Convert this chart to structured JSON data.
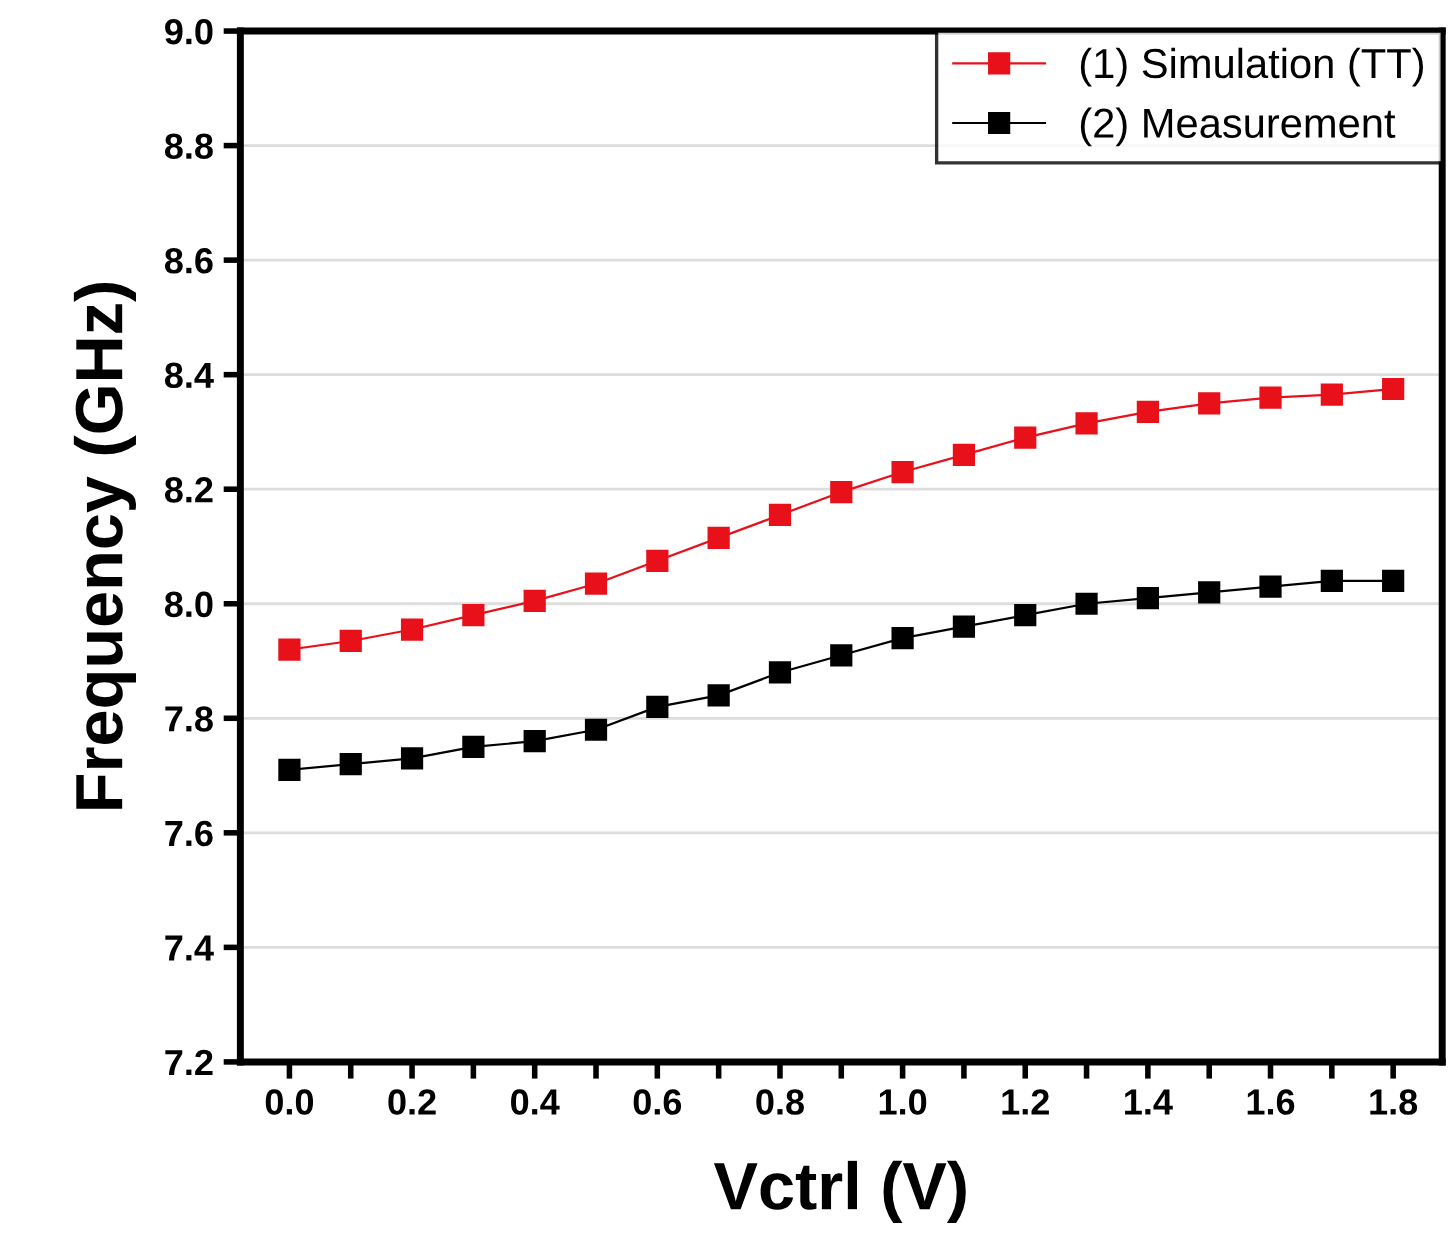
{
  "chart_data": {
    "type": "line",
    "xlabel": "Vctrl (V)",
    "ylabel": "Frequency (GHz)",
    "x": [
      0.0,
      0.1,
      0.2,
      0.3,
      0.4,
      0.5,
      0.6,
      0.7,
      0.8,
      0.9,
      1.0,
      1.1,
      1.2,
      1.3,
      1.4,
      1.5,
      1.6,
      1.7,
      1.8
    ],
    "series": [
      {
        "name": "(1) Simulation (TT)",
        "color": "#e8111a",
        "values": [
          7.92,
          7.935,
          7.955,
          7.98,
          8.005,
          8.035,
          8.075,
          8.115,
          8.155,
          8.195,
          8.23,
          8.26,
          8.29,
          8.315,
          8.335,
          8.35,
          8.36,
          8.365,
          8.375
        ]
      },
      {
        "name": "(2) Measurement",
        "color": "#000000",
        "values": [
          7.71,
          7.72,
          7.73,
          7.75,
          7.76,
          7.78,
          7.82,
          7.84,
          7.88,
          7.91,
          7.94,
          7.96,
          7.98,
          8.0,
          8.01,
          8.02,
          8.03,
          8.04,
          8.04
        ]
      }
    ],
    "xlim": [
      -0.08,
      1.88
    ],
    "xticks": [
      {
        "value": 0,
        "label": "0.0"
      },
      {
        "value": 0.1,
        "label": null
      },
      0.2,
      {
        "value": 0.3,
        "label": null
      },
      0.4,
      {
        "value": 0.5,
        "label": null
      },
      0.6,
      {
        "value": 0.7,
        "label": null
      },
      0.8,
      {
        "value": 0.9,
        "label": null
      },
      {
        "value": 1,
        "label": "1.0"
      },
      {
        "value": 1.1,
        "label": null
      },
      1.2,
      {
        "value": 1.3,
        "label": null
      },
      1.4,
      {
        "value": 1.5,
        "label": null
      },
      1.6,
      {
        "value": 1.7,
        "label": null
      },
      1.8
    ],
    "ylim": [
      7.2,
      9.0
    ],
    "yticks": [
      7.2,
      7.4,
      7.6,
      7.8,
      {
        "value": 8,
        "label": "8.0"
      },
      8.2,
      8.4,
      8.6,
      8.8,
      {
        "value": 9,
        "label": "9.0"
      }
    ],
    "grid": "y",
    "legend": "top right",
    "marker": "square",
    "line_style": "solid"
  }
}
